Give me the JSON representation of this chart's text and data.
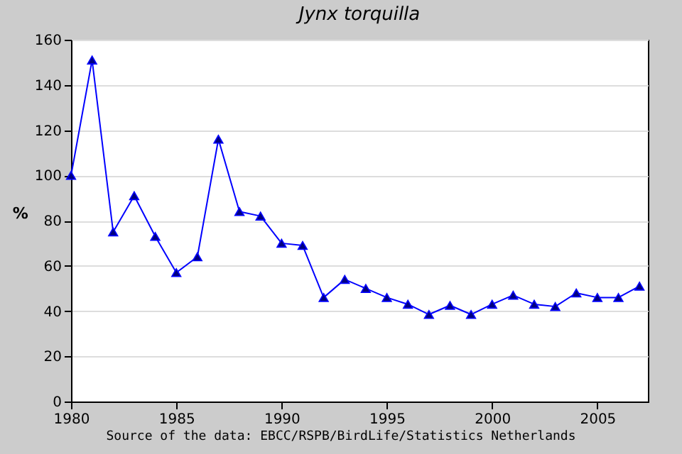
{
  "chart_data": {
    "type": "line",
    "title": "Jynx torquilla",
    "ylabel": "%",
    "annotations": [
      "Source of the data: EBCC/RSPB/BirdLife/Statistics Netherlands"
    ],
    "x": [
      1980,
      1981,
      1982,
      1983,
      1984,
      1985,
      1986,
      1987,
      1988,
      1989,
      1990,
      1991,
      1992,
      1993,
      1994,
      1995,
      1996,
      1997,
      1998,
      1999,
      2000,
      2001,
      2002,
      2003,
      2004,
      2005,
      2006,
      2007
    ],
    "series": [
      {
        "color": "#0000ff",
        "values": [
          100,
          151,
          75,
          91,
          73,
          57,
          64,
          116,
          84,
          82,
          70,
          69,
          46,
          54,
          50,
          46,
          43,
          38.5,
          42.5,
          38.5,
          43,
          47,
          43,
          42,
          48,
          46,
          46,
          51
        ]
      }
    ],
    "xlim": [
      1980,
      2007.4
    ],
    "xticks": [
      1980,
      1985,
      1990,
      1995,
      2000,
      2005
    ],
    "ylim": [
      0,
      160
    ],
    "yticks": [
      0,
      20,
      40,
      60,
      80,
      100,
      120,
      140,
      160
    ],
    "grid": "y",
    "marker": "triangle",
    "line_style": "solid"
  }
}
